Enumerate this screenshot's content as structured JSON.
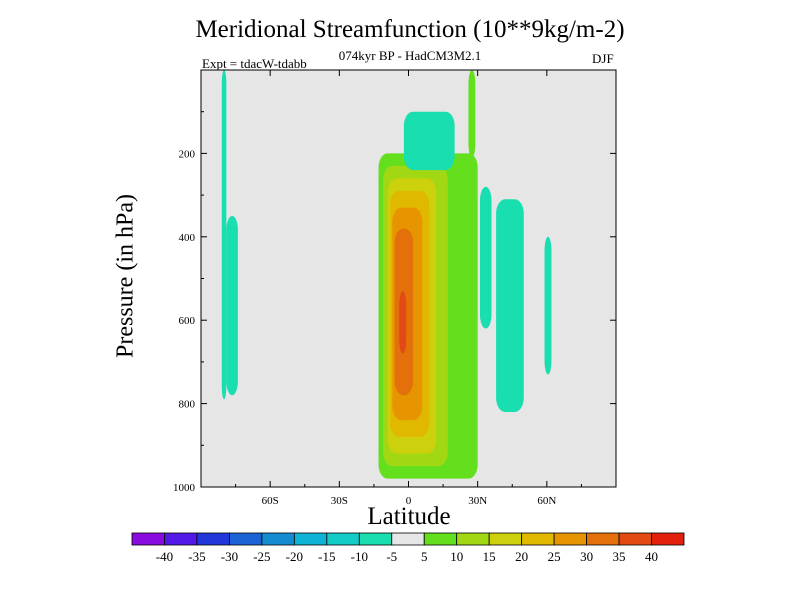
{
  "chart_data": {
    "type": "contour",
    "title": "Meridional Streamfunction (10**9kg/m-2)",
    "subtitle": "074kyr BP - HadCM3M2.1",
    "left_string": "Expt = tdacW-tdabb",
    "right_string": "DJF",
    "xlabel": "Latitude",
    "ylabel": "Pressure (in hPa)",
    "xlim": [
      -90,
      90
    ],
    "ylim": [
      1000,
      0
    ],
    "x_ticks": [
      {
        "value": -60,
        "label": "60S"
      },
      {
        "value": -30,
        "label": "30S"
      },
      {
        "value": 0,
        "label": "0"
      },
      {
        "value": 30,
        "label": "30N"
      },
      {
        "value": 60,
        "label": "60N"
      }
    ],
    "y_ticks": [
      {
        "value": 200,
        "label": "200"
      },
      {
        "value": 400,
        "label": "400"
      },
      {
        "value": 600,
        "label": "600"
      },
      {
        "value": 800,
        "label": "800"
      },
      {
        "value": 1000,
        "label": "1000"
      }
    ],
    "contour_levels": [
      -40,
      -35,
      -30,
      -25,
      -20,
      -15,
      -10,
      -5,
      5,
      10,
      15,
      20,
      25,
      30,
      35,
      40
    ],
    "level_colors": [
      "#8a0be0",
      "#5319e6",
      "#2237d9",
      "#1c64d6",
      "#158bd2",
      "#0fb3d6",
      "#13cbc7",
      "#18deb0",
      "#e6e6e6",
      "#63df1e",
      "#a2d813",
      "#cdd00c",
      "#e1b800",
      "#e69500",
      "#e4700b",
      "#e34912",
      "#e2200c"
    ],
    "field_regions": [
      {
        "name": "sh-polar-negative-upper",
        "value": -7,
        "lat": [
          -81,
          -79
        ],
        "p": [
          0,
          790
        ]
      },
      {
        "name": "sh-negative-lower",
        "value": -7,
        "lat": [
          -79,
          -74
        ],
        "p": [
          350,
          780
        ]
      },
      {
        "name": "tropical-cell-outer",
        "value": 7,
        "lat": [
          -13,
          30
        ],
        "p": [
          200,
          980
        ]
      },
      {
        "name": "tropical-cell-10",
        "value": 12,
        "lat": [
          -11,
          17
        ],
        "p": [
          230,
          950
        ]
      },
      {
        "name": "tropical-cell-15",
        "value": 17,
        "lat": [
          -9,
          12
        ],
        "p": [
          260,
          920
        ]
      },
      {
        "name": "tropical-cell-20",
        "value": 22,
        "lat": [
          -8,
          9
        ],
        "p": [
          290,
          880
        ]
      },
      {
        "name": "tropical-cell-25",
        "value": 27,
        "lat": [
          -7,
          6
        ],
        "p": [
          330,
          840
        ]
      },
      {
        "name": "tropical-cell-30",
        "value": 32,
        "lat": [
          -6,
          2
        ],
        "p": [
          380,
          780
        ]
      },
      {
        "name": "tropical-cell-core",
        "value": 37,
        "lat": [
          -4,
          -1
        ],
        "p": [
          530,
          680
        ]
      },
      {
        "name": "upper-negative-cell",
        "value": -7,
        "lat": [
          -2,
          20
        ],
        "p": [
          100,
          240
        ]
      },
      {
        "name": "nh-negative-cell",
        "value": -7,
        "lat": [
          38,
          50
        ],
        "p": [
          310,
          820
        ]
      },
      {
        "name": "nh-negative-narrow",
        "value": -7,
        "lat": [
          31,
          36
        ],
        "p": [
          280,
          620
        ]
      },
      {
        "name": "nh-negative-60n",
        "value": -7,
        "lat": [
          59,
          62
        ],
        "p": [
          400,
          730
        ]
      },
      {
        "name": "nh-positive-upper",
        "value": 7,
        "lat": [
          26,
          29
        ],
        "p": [
          0,
          210
        ]
      }
    ]
  }
}
